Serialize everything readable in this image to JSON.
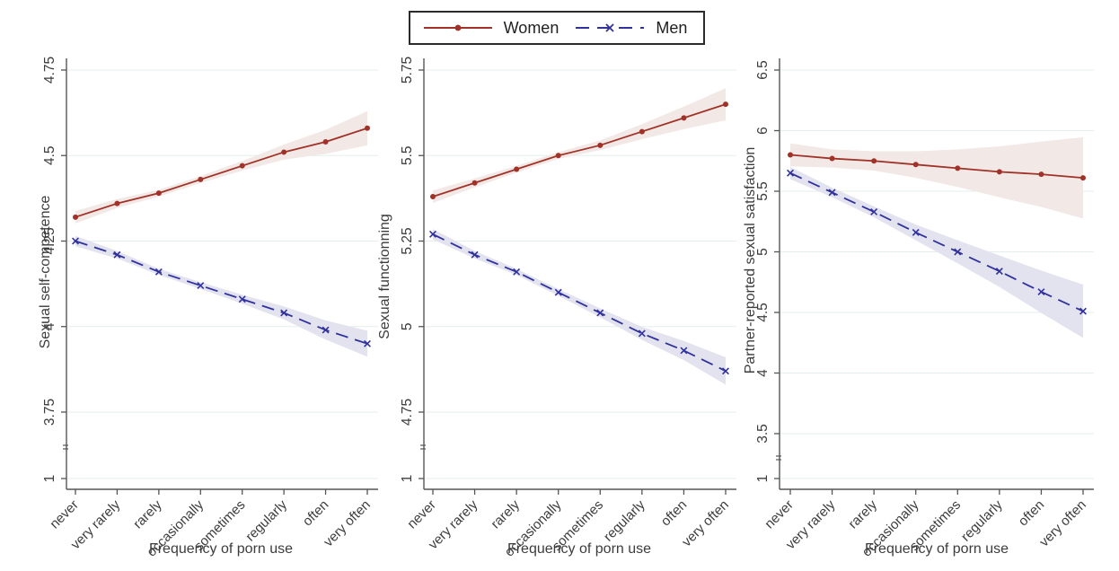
{
  "figure": {
    "x_axis_title": "Frequency of porn use",
    "categories": [
      "never",
      "very rarely",
      "rarely",
      "occasionally",
      "sometimes",
      "regularly",
      "often",
      "very often"
    ]
  },
  "legend": {
    "items": [
      {
        "label": "Women",
        "marker": "circle-icon",
        "line_style": "solid"
      },
      {
        "label": "Men",
        "marker": "x-icon",
        "line_style": "dashed"
      }
    ]
  },
  "colors": {
    "women_line": "#a03228",
    "women_band": "#f2e8e6",
    "men_line": "#31319e",
    "men_band": "#e3e3ef",
    "grid": "#e2efec",
    "axis": "#555555",
    "text": "#3c3c3c",
    "legend_border": "#2b2b2b",
    "background": "#ffffff"
  },
  "chart_data": [
    {
      "type": "line",
      "ylabel": "Sexual self-competence",
      "xlabel": "Frequency of porn use",
      "categories": [
        "never",
        "very rarely",
        "rarely",
        "occasionally",
        "sometimes",
        "regularly",
        "often",
        "very often"
      ],
      "y_ticks_labeled": [
        "4.75",
        "4.5",
        "4.25",
        "4",
        "3.75"
      ],
      "y_bottom_tick": "1",
      "y_axis_break": true,
      "grid": true,
      "legend_position": "top-center-shared",
      "series": [
        {
          "name": "Women",
          "values": [
            4.32,
            4.36,
            4.39,
            4.43,
            4.47,
            4.51,
            4.54,
            4.58
          ],
          "ci_halfwidth": [
            0.018,
            0.013,
            0.01,
            0.01,
            0.014,
            0.022,
            0.035,
            0.05
          ]
        },
        {
          "name": "Men",
          "values": [
            4.25,
            4.21,
            4.16,
            4.12,
            4.08,
            4.04,
            3.99,
            3.95
          ],
          "ci_halfwidth": [
            0.015,
            0.011,
            0.009,
            0.01,
            0.013,
            0.019,
            0.028,
            0.038
          ]
        }
      ]
    },
    {
      "type": "line",
      "ylabel": "Sexual functionning",
      "xlabel": "Frequency of porn use",
      "categories": [
        "never",
        "very rarely",
        "rarely",
        "occasionally",
        "sometimes",
        "regularly",
        "often",
        "very often"
      ],
      "y_ticks_labeled": [
        "5.75",
        "5.5",
        "5.25",
        "5",
        "4.75"
      ],
      "y_bottom_tick": "1",
      "y_axis_break": true,
      "grid": true,
      "legend_position": "top-center-shared",
      "series": [
        {
          "name": "Women",
          "values": [
            5.38,
            5.42,
            5.46,
            5.5,
            5.53,
            5.57,
            5.61,
            5.65
          ],
          "ci_halfwidth": [
            0.018,
            0.013,
            0.01,
            0.01,
            0.014,
            0.022,
            0.033,
            0.047
          ]
        },
        {
          "name": "Men",
          "values": [
            5.27,
            5.21,
            5.16,
            5.1,
            5.04,
            4.98,
            4.93,
            4.87
          ],
          "ci_halfwidth": [
            0.015,
            0.011,
            0.009,
            0.01,
            0.013,
            0.019,
            0.028,
            0.04
          ]
        }
      ]
    },
    {
      "type": "line",
      "ylabel": "Partner-reported sexual satisfaction",
      "xlabel": "Frequency of porn use",
      "categories": [
        "never",
        "very rarely",
        "rarely",
        "occasionally",
        "sometimes",
        "regularly",
        "often",
        "very often"
      ],
      "y_ticks_labeled": [
        "6.5",
        "6",
        "5.5",
        "5",
        "4.5",
        "4",
        "3.5"
      ],
      "y_bottom_tick": "1",
      "y_axis_break": true,
      "grid": true,
      "legend_position": "top-center-shared",
      "series": [
        {
          "name": "Women",
          "values": [
            5.8,
            5.77,
            5.75,
            5.72,
            5.69,
            5.66,
            5.64,
            5.61
          ],
          "ci_halfwidth": [
            0.095,
            0.075,
            0.08,
            0.11,
            0.155,
            0.21,
            0.27,
            0.335
          ]
        },
        {
          "name": "Men",
          "values": [
            5.65,
            5.49,
            5.33,
            5.16,
            5.0,
            4.84,
            4.67,
            4.51
          ],
          "ci_halfwidth": [
            0.05,
            0.04,
            0.045,
            0.065,
            0.095,
            0.13,
            0.175,
            0.22
          ]
        }
      ]
    }
  ]
}
